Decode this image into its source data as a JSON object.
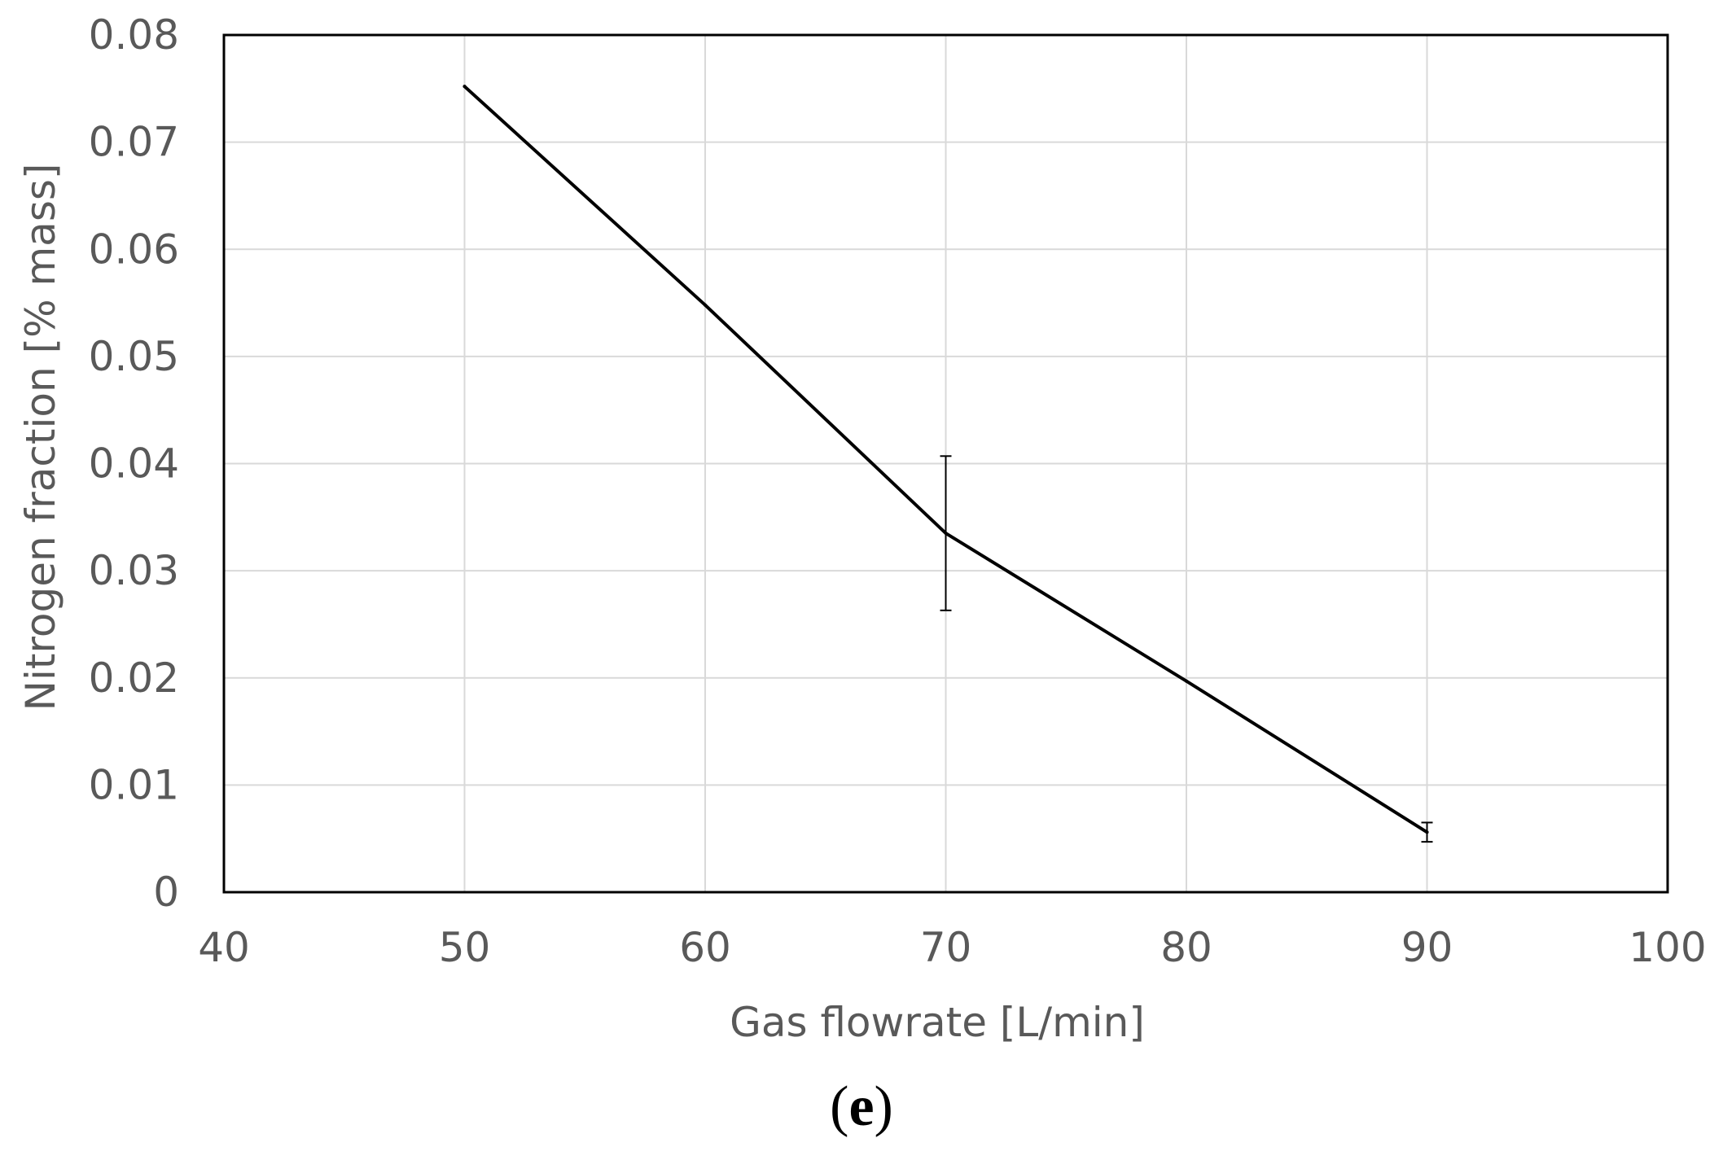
{
  "chart_data": {
    "type": "line",
    "title": "",
    "xlabel": "Gas flowrate [L/min]",
    "ylabel": "Nitrogen fraction [% mass]",
    "xlim": [
      40,
      100
    ],
    "ylim": [
      0,
      0.08
    ],
    "x_ticks": [
      "40",
      "50",
      "60",
      "70",
      "80",
      "90",
      "100"
    ],
    "y_ticks": [
      "0",
      "0.01",
      "0.02",
      "0.03",
      "0.04",
      "0.05",
      "0.06",
      "0.07",
      "0.08"
    ],
    "x_tick_values": [
      40,
      50,
      60,
      70,
      80,
      90,
      100
    ],
    "y_tick_values": [
      0,
      0.01,
      0.02,
      0.03,
      0.04,
      0.05,
      0.06,
      0.07,
      0.08
    ],
    "grid": true,
    "legend": "none",
    "series": [
      {
        "x": [
          50,
          60,
          70,
          80,
          90
        ],
        "y": [
          0.0752,
          0.0548,
          0.0335,
          0.0197,
          0.0056
        ],
        "error": [
          null,
          null,
          0.0072,
          null,
          0.0009
        ],
        "color": "#000000"
      }
    ],
    "grid_color": "#d9d9d9",
    "axis_color": "#000000"
  },
  "panel_label": {
    "open": "(",
    "letter": "e",
    "close": ")"
  }
}
